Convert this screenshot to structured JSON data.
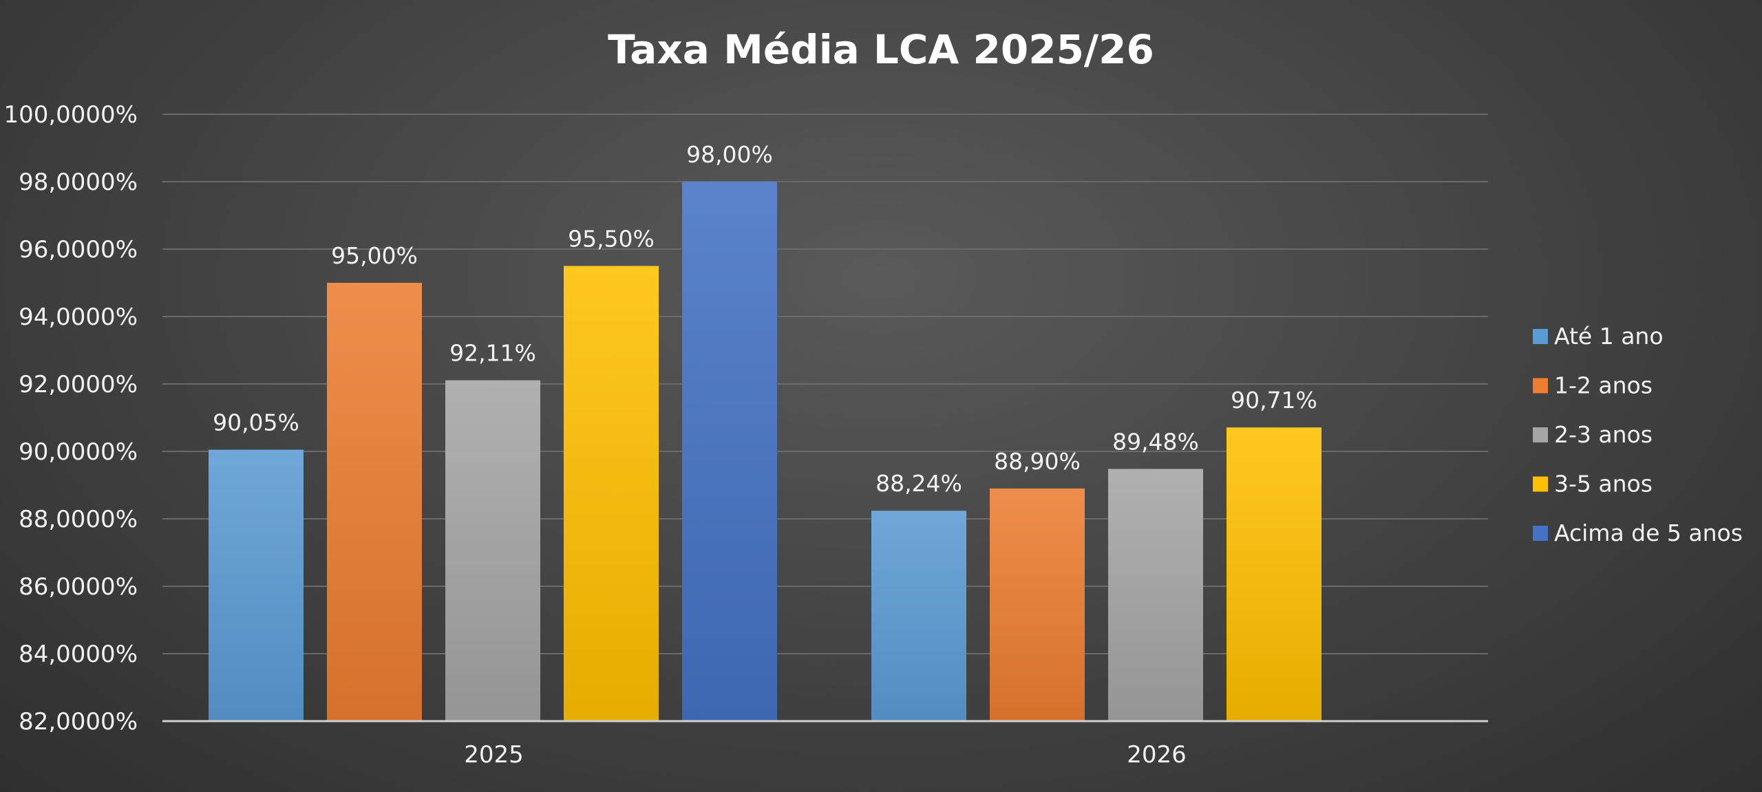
{
  "chart_data": {
    "type": "bar",
    "title": "Taxa Média LCA 2025/26",
    "xlabel": "",
    "ylabel": "",
    "categories": [
      "2025",
      "2026"
    ],
    "ylim": [
      82,
      100
    ],
    "yticks": [
      {
        "value": 82,
        "label": "82,0000%"
      },
      {
        "value": 84,
        "label": "84,0000%"
      },
      {
        "value": 86,
        "label": "86,0000%"
      },
      {
        "value": 88,
        "label": "88,0000%"
      },
      {
        "value": 90,
        "label": "90,0000%"
      },
      {
        "value": 92,
        "label": "92,0000%"
      },
      {
        "value": 94,
        "label": "94,0000%"
      },
      {
        "value": 96,
        "label": "96,0000%"
      },
      {
        "value": 98,
        "label": "98,0000%"
      },
      {
        "value": 100,
        "label": "100,0000%"
      }
    ],
    "grid": true,
    "legend_position": "right",
    "series": [
      {
        "name": "Até 1 ano",
        "color": "#5b9bd5",
        "values": [
          90.05,
          88.24
        ],
        "labels": [
          "90,05%",
          "88,24%"
        ]
      },
      {
        "name": "1-2 anos",
        "color": "#ed7d31",
        "values": [
          95.0,
          88.9
        ],
        "labels": [
          "95,00%",
          "88,90%"
        ]
      },
      {
        "name": "2-3 anos",
        "color": "#a5a5a5",
        "values": [
          92.11,
          89.48
        ],
        "labels": [
          "92,11%",
          "89,48%"
        ]
      },
      {
        "name": "3-5 anos",
        "color": "#ffc000",
        "values": [
          95.5,
          90.71
        ],
        "labels": [
          "95,50%",
          "90,71%"
        ]
      },
      {
        "name": "Acima de 5 anos",
        "color": "#4472c4",
        "values": [
          98.0,
          null
        ],
        "labels": [
          "98,00%",
          null
        ]
      }
    ]
  }
}
